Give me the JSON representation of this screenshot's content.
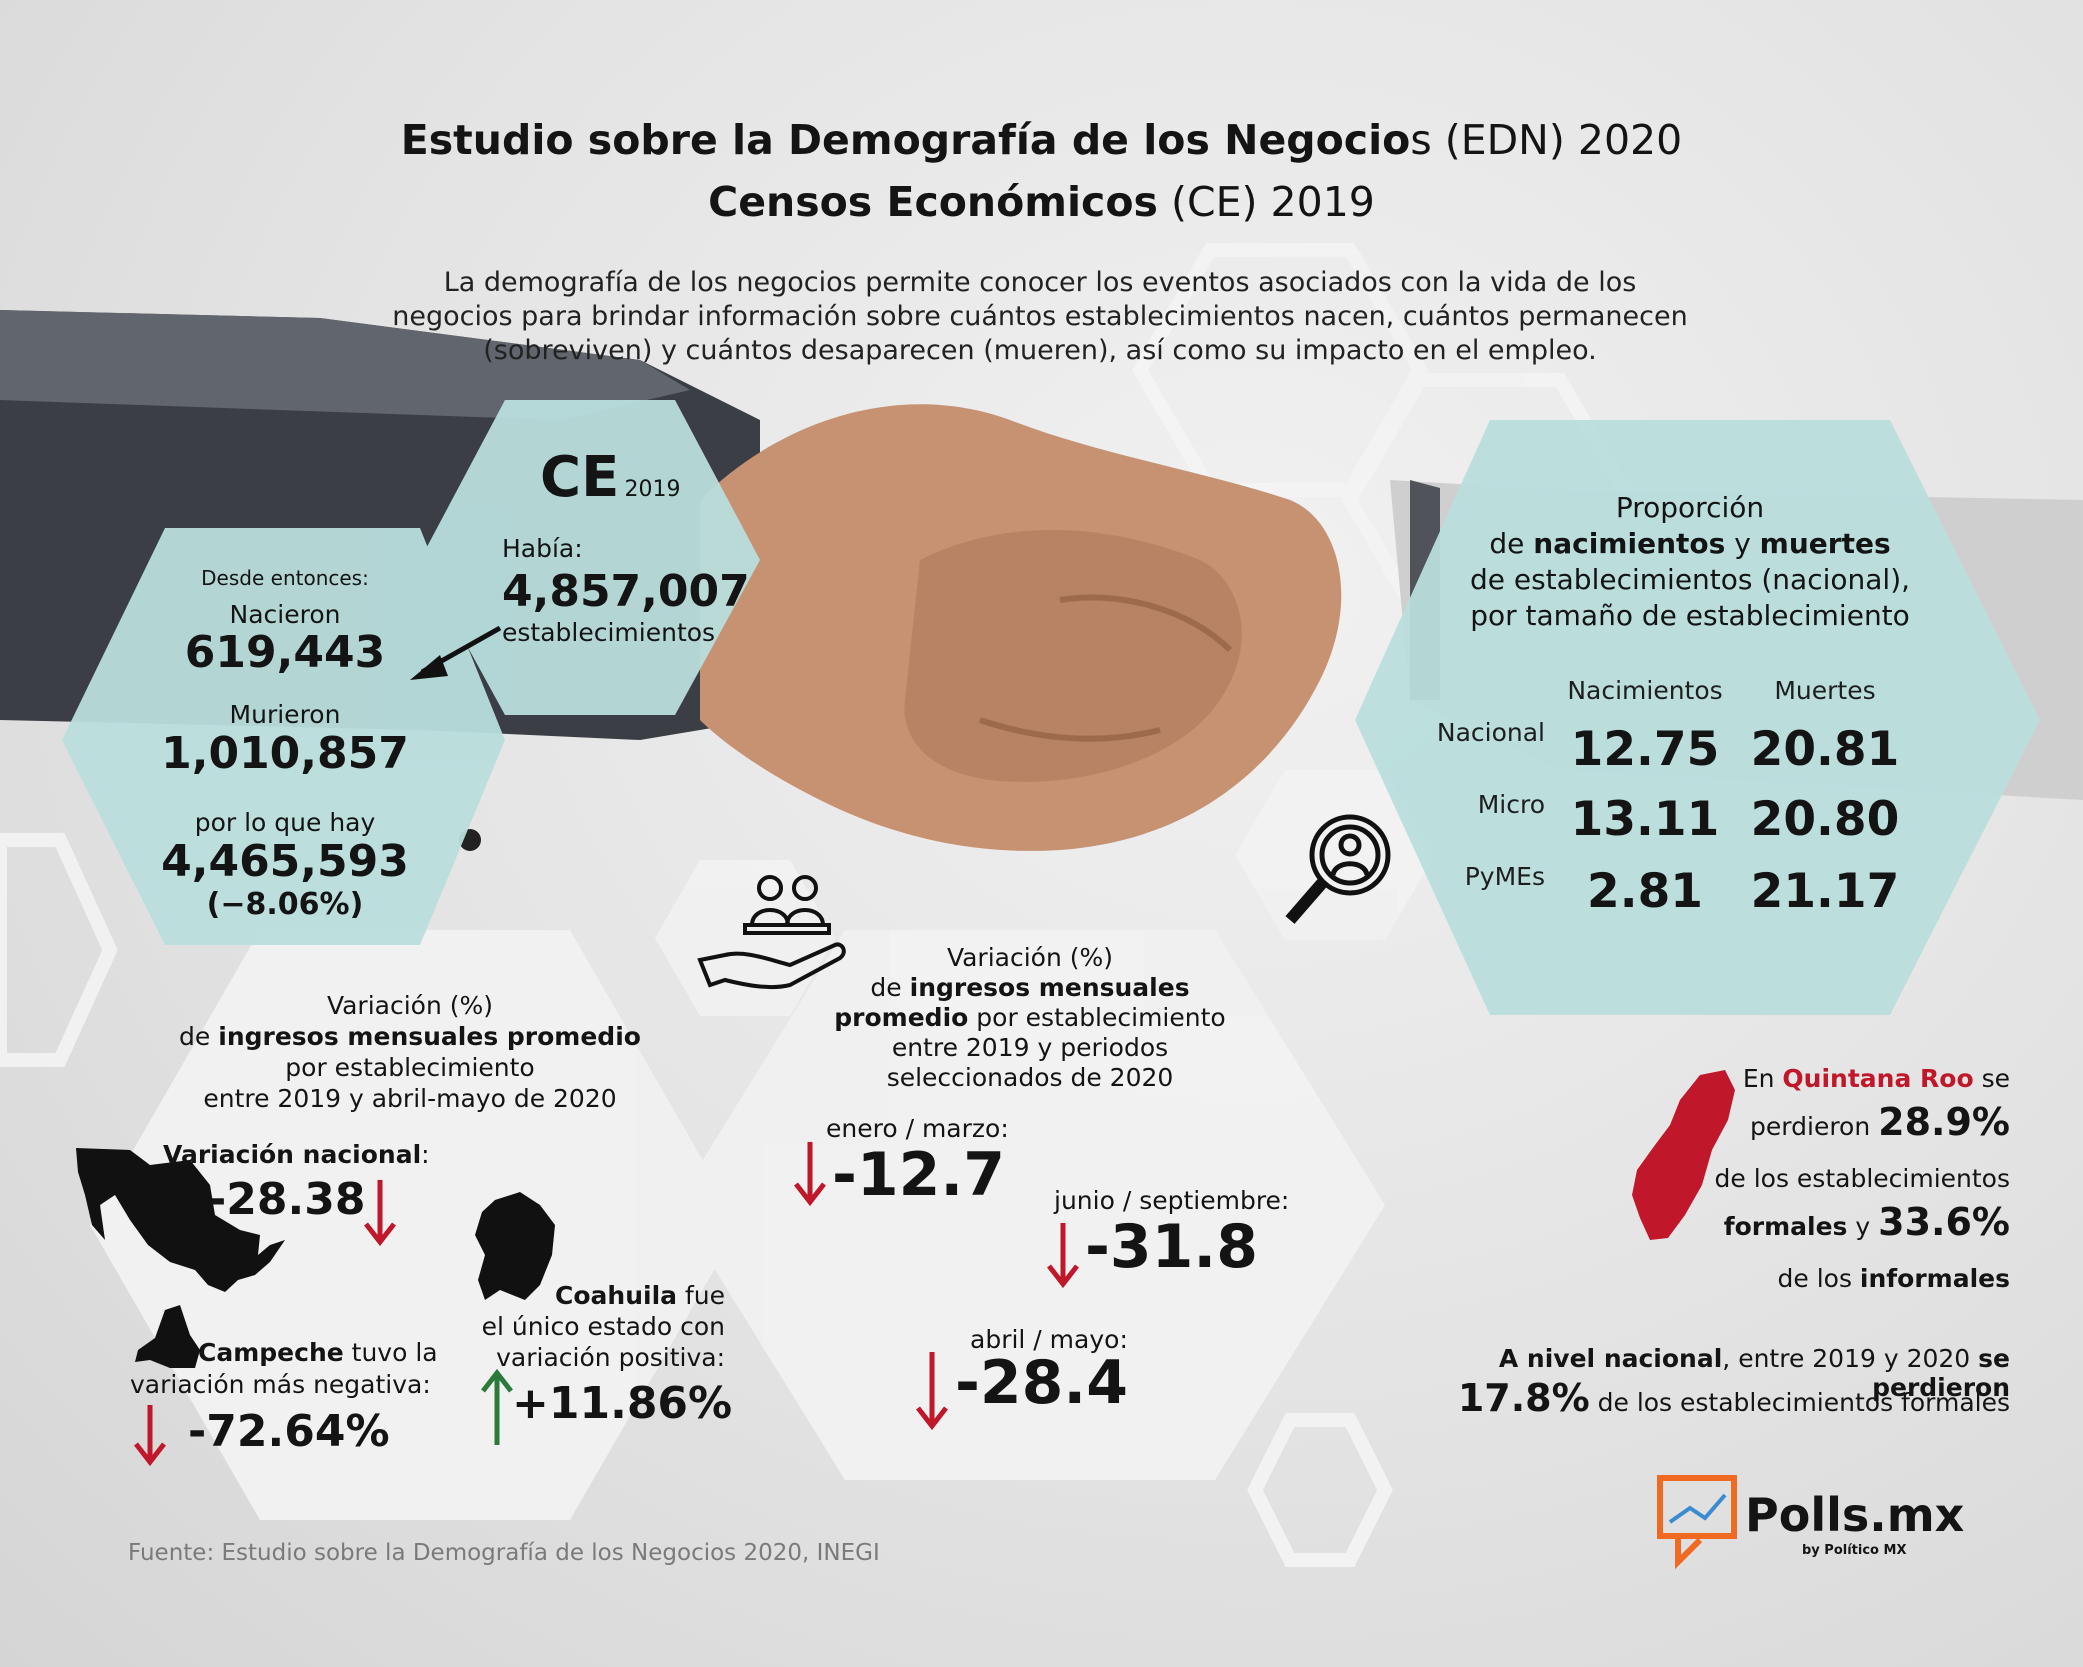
{
  "colors": {
    "teal": "#b9dedd",
    "light_hex": "#f1f1f1",
    "red": "#c0182a",
    "green": "#2a7a3a",
    "orange": "#f16a22",
    "dark": "#141414"
  },
  "icons": [
    "arrow-down-left-icon",
    "people-hand-icon",
    "search-person-icon",
    "mexico-map-icon",
    "campeche-map-icon",
    "coahuila-map-icon",
    "quintana-roo-map-icon",
    "down-arrow-icon",
    "up-arrow-icon",
    "polls-logo-icon"
  ],
  "header": {
    "title1_bold": "Estudio sobre la Demografía de los Negocio",
    "title1_normal": "s (EDN) 2020",
    "title2_bold": "Censos Económicos",
    "title2_normal": " (CE) 2019",
    "intro_1": "La demografía de los negocios permite conocer los eventos asociados con la vida de los",
    "intro_2": "negocios para brindar información sobre cuántos establecimientos nacen, cuántos permanecen",
    "intro_3": "(sobreviven) y cuántos desaparecen (mueren), así como su impacto en el empleo."
  },
  "ce": {
    "label": "CE",
    "year": "2019",
    "habia": "Había:",
    "total": "4,857,007",
    "unit": "establecimientos"
  },
  "since": {
    "desde": "Desde entonces:",
    "nacieron_label": "Nacieron",
    "nacieron": "619,443",
    "murieron_label": "Murieron",
    "murieron": "1,010,857",
    "hay_label": "por lo que hay",
    "hay": "4,465,593",
    "pct": "(−8.06%)"
  },
  "proportion": {
    "line1": "Proporción",
    "line2_pre": "de ",
    "line2_b1": "nacimientos",
    "line2_mid": " y ",
    "line2_b2": "muertes",
    "line3": "de establecimientos (nacional),",
    "line4": "por tamaño de establecimiento",
    "col_births": "Nacimientos",
    "col_deaths": "Muertes",
    "rows": [
      {
        "label": "Nacional",
        "births": "12.75",
        "deaths": "20.81"
      },
      {
        "label": "Micro",
        "births": "13.11",
        "deaths": "20.80"
      },
      {
        "label": "PyMEs",
        "births": "2.81",
        "deaths": "21.17"
      }
    ]
  },
  "left_var": {
    "l1": "Variación (%)",
    "l2_pre": "de ",
    "l2_b": "ingresos mensuales promedio",
    "l3": "por establecimiento",
    "l4": "entre 2019 y abril-mayo de 2020",
    "nacional_label": "Variación nacional",
    "nacional_colon": ":",
    "nacional_val": "-28.38",
    "campeche_b": "Campeche",
    "campeche_t1": " tuvo la",
    "campeche_t2": "variación más negativa:",
    "campeche_val": "-72.64%",
    "coahuila_b": "Coahuila",
    "coahuila_t1": " fue",
    "coahuila_t2": "el único estado con",
    "coahuila_t3": "variación positiva:",
    "coahuila_val": "+11.86%"
  },
  "mid_var": {
    "l1": "Variación (%)",
    "l2_pre": "de ",
    "l2_b": "ingresos mensuales",
    "l3_b": "promedio",
    "l3_t": " por establecimiento",
    "l4": "entre 2019 y periodos",
    "l5": "seleccionados de 2020",
    "p1_label": "enero / marzo:",
    "p1_val": "-12.7",
    "p2_label": "junio / septiembre:",
    "p2_val": "-31.8",
    "p3_label": "abril / mayo:",
    "p3_val": "-28.4"
  },
  "qroo": {
    "l1_pre": "En ",
    "l1_red": "Quintana Roo",
    "l1_post": " se",
    "l2_t": "perdieron ",
    "l2_b": "28.9%",
    "l3": "de los establecimientos",
    "l4_b": "formales",
    "l4_t": " y ",
    "l4_b2": "33.6%",
    "l5_t": "de los ",
    "l5_b": "informales"
  },
  "national": {
    "l1_b1": "A nivel nacional",
    "l1_t": ", entre 2019 y 2020 ",
    "l1_b2": "se perdieron",
    "l2_b": "17.8%",
    "l2_t": " de los establecimientos formales"
  },
  "footer": {
    "source": "Fuente: Estudio sobre la Demografía de los Negocios 2020, INEGI",
    "brand": "Polls.mx",
    "brand_sub": "by Político MX"
  }
}
